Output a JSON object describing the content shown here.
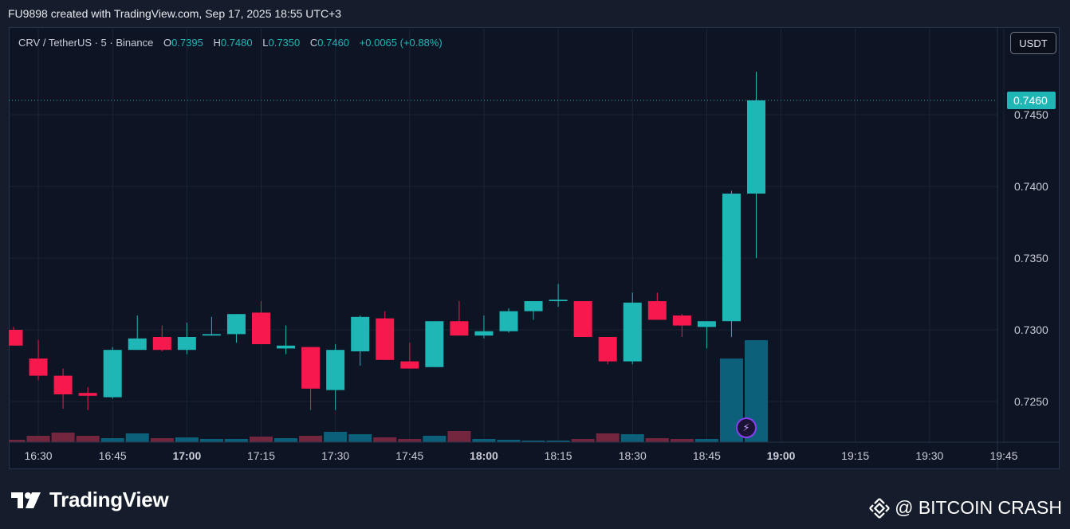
{
  "header": {
    "caption": "FU9898 created with TradingView.com, Sep 17, 2025 18:55 UTC+3"
  },
  "legend": {
    "symbol": "CRV / TetherUS · 5 · Binance",
    "open_label": "O",
    "open": "0.7395",
    "high_label": "H",
    "high": "0.7480",
    "low_label": "L",
    "low": "0.7350",
    "close_label": "C",
    "close": "0.7460",
    "change": "+0.0065 (+0.88%)"
  },
  "currency_button": "USDT",
  "colors": {
    "up": "#1fb6b6",
    "down": "#f7184e",
    "up_volume": "#0e6480",
    "down_volume": "#7a2740",
    "grid": "#1c2436",
    "axis_text": "#c9ccd6",
    "price_label_bg": "#1fb6b6"
  },
  "icons": {
    "alert": "lightning-bolt-icon",
    "brand": "tradingview-logo-icon",
    "watermark": "binance-diamond-icon"
  },
  "footer": {
    "brand": "TradingView",
    "watermark": "@ BITCOIN CRASH"
  },
  "chart_data": {
    "type": "candlestick",
    "interval_minutes": 5,
    "ylim": [
      0.722,
      0.75
    ],
    "y_ticks": [
      "0.7450",
      "0.7400",
      "0.7350",
      "0.7300",
      "0.7250"
    ],
    "x_ticks": [
      {
        "label": "16:30",
        "bold": false
      },
      {
        "label": "16:45",
        "bold": false
      },
      {
        "label": "17:00",
        "bold": true
      },
      {
        "label": "17:15",
        "bold": false
      },
      {
        "label": "17:30",
        "bold": false
      },
      {
        "label": "17:45",
        "bold": false
      },
      {
        "label": "18:00",
        "bold": true
      },
      {
        "label": "18:15",
        "bold": false
      },
      {
        "label": "18:30",
        "bold": false
      },
      {
        "label": "18:45",
        "bold": false
      },
      {
        "label": "19:00",
        "bold": true
      },
      {
        "label": "19:15",
        "bold": false
      },
      {
        "label": "19:30",
        "bold": false
      },
      {
        "label": "19:45",
        "bold": false
      }
    ],
    "last_price": "0.7460",
    "candles": [
      {
        "t": "16:25",
        "o": 0.73,
        "h": 0.7302,
        "l": 0.7289,
        "c": 0.7289
      },
      {
        "t": "16:30",
        "o": 0.728,
        "h": 0.7293,
        "l": 0.7265,
        "c": 0.7268
      },
      {
        "t": "16:35",
        "o": 0.7268,
        "h": 0.7273,
        "l": 0.7245,
        "c": 0.7255
      },
      {
        "t": "16:40",
        "o": 0.7256,
        "h": 0.726,
        "l": 0.7244,
        "c": 0.7254
      },
      {
        "t": "16:45",
        "o": 0.7253,
        "h": 0.7288,
        "l": 0.7252,
        "c": 0.7286
      },
      {
        "t": "16:50",
        "o": 0.7286,
        "h": 0.731,
        "l": 0.7286,
        "c": 0.7294
      },
      {
        "t": "16:55",
        "o": 0.7295,
        "h": 0.7303,
        "l": 0.7285,
        "c": 0.7286
      },
      {
        "t": "17:00",
        "o": 0.7286,
        "h": 0.7305,
        "l": 0.7283,
        "c": 0.7295
      },
      {
        "t": "17:05",
        "o": 0.7296,
        "h": 0.7309,
        "l": 0.7296,
        "c": 0.7297
      },
      {
        "t": "17:10",
        "o": 0.7297,
        "h": 0.7311,
        "l": 0.7291,
        "c": 0.7311
      },
      {
        "t": "17:15",
        "o": 0.7312,
        "h": 0.732,
        "l": 0.729,
        "c": 0.729
      },
      {
        "t": "17:20",
        "o": 0.7287,
        "h": 0.7303,
        "l": 0.7283,
        "c": 0.7289
      },
      {
        "t": "17:25",
        "o": 0.7288,
        "h": 0.7288,
        "l": 0.7244,
        "c": 0.7259
      },
      {
        "t": "17:30",
        "o": 0.7258,
        "h": 0.729,
        "l": 0.7244,
        "c": 0.7286
      },
      {
        "t": "17:35",
        "o": 0.7285,
        "h": 0.731,
        "l": 0.7275,
        "c": 0.7309
      },
      {
        "t": "17:40",
        "o": 0.7308,
        "h": 0.7313,
        "l": 0.7279,
        "c": 0.7279
      },
      {
        "t": "17:45",
        "o": 0.7278,
        "h": 0.7291,
        "l": 0.7273,
        "c": 0.7273
      },
      {
        "t": "17:50",
        "o": 0.7274,
        "h": 0.7306,
        "l": 0.7274,
        "c": 0.7306
      },
      {
        "t": "17:55",
        "o": 0.7306,
        "h": 0.732,
        "l": 0.7296,
        "c": 0.7296
      },
      {
        "t": "18:00",
        "o": 0.7296,
        "h": 0.731,
        "l": 0.7294,
        "c": 0.7299
      },
      {
        "t": "18:05",
        "o": 0.7299,
        "h": 0.7315,
        "l": 0.7298,
        "c": 0.7313
      },
      {
        "t": "18:10",
        "o": 0.7313,
        "h": 0.732,
        "l": 0.7307,
        "c": 0.732
      },
      {
        "t": "18:15",
        "o": 0.732,
        "h": 0.7332,
        "l": 0.7316,
        "c": 0.7321
      },
      {
        "t": "18:20",
        "o": 0.732,
        "h": 0.732,
        "l": 0.7295,
        "c": 0.7295
      },
      {
        "t": "18:25",
        "o": 0.7295,
        "h": 0.7295,
        "l": 0.7276,
        "c": 0.7278
      },
      {
        "t": "18:30",
        "o": 0.7278,
        "h": 0.7326,
        "l": 0.7276,
        "c": 0.7319
      },
      {
        "t": "18:35",
        "o": 0.732,
        "h": 0.7326,
        "l": 0.7307,
        "c": 0.7307
      },
      {
        "t": "18:40",
        "o": 0.731,
        "h": 0.7311,
        "l": 0.7295,
        "c": 0.7303
      },
      {
        "t": "18:45",
        "o": 0.7302,
        "h": 0.7306,
        "l": 0.7287,
        "c": 0.7306
      },
      {
        "t": "18:50",
        "o": 0.7306,
        "h": 0.7397,
        "l": 0.7295,
        "c": 0.7395
      },
      {
        "t": "18:55",
        "o": 0.7395,
        "h": 0.748,
        "l": 0.735,
        "c": 0.746
      }
    ],
    "volumes": [
      3,
      8,
      12,
      8,
      5,
      11,
      5,
      6,
      4,
      4,
      7,
      5,
      8,
      13,
      10,
      6,
      4,
      8,
      14,
      4,
      3,
      2,
      2,
      4,
      11,
      10,
      5,
      4,
      4,
      105,
      128
    ]
  }
}
